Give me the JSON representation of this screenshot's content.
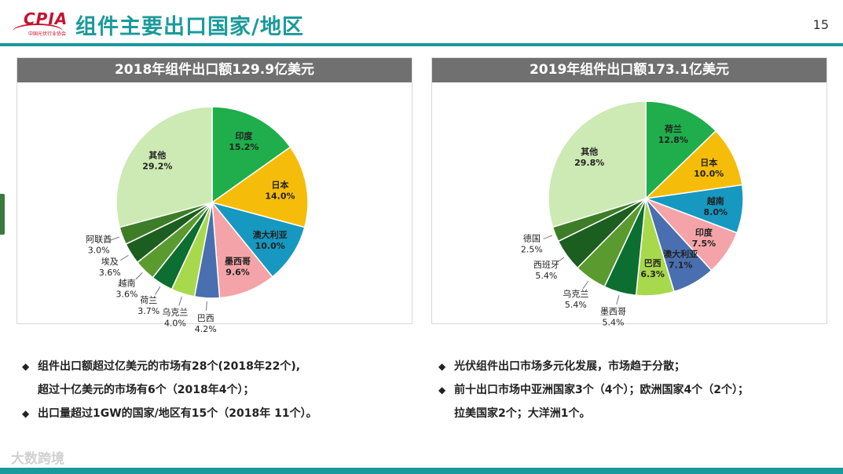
{
  "header": {
    "logo_text": "CPIA",
    "logo_sub": "中国光伏行业协会",
    "title": "组件主要出口国家/地区",
    "page_number": "15"
  },
  "chart_data": [
    {
      "type": "pie",
      "title": "2018年组件出口额129.9亿美元",
      "start_angle": 0,
      "slices": [
        {
          "name": "印度",
          "value": 15.2,
          "label": "15.2%",
          "color": "#1fae4b"
        },
        {
          "name": "日本",
          "value": 14.0,
          "label": "14.0%",
          "color": "#f5bd0a"
        },
        {
          "name": "澳大利亚",
          "value": 10.0,
          "label": "10.0%",
          "color": "#1798c0"
        },
        {
          "name": "墨西哥",
          "value": 9.6,
          "label": "9.6%",
          "color": "#f4a4a8"
        },
        {
          "name": "巴西",
          "value": 4.2,
          "label": "4.2%",
          "color": "#4a6fb0"
        },
        {
          "name": "乌克兰",
          "value": 4.0,
          "label": "4.0%",
          "color": "#a8d84c"
        },
        {
          "name": "荷兰",
          "value": 3.7,
          "label": "3.7%",
          "color": "#0d6e32"
        },
        {
          "name": "越南",
          "value": 3.6,
          "label": "3.6%",
          "color": "#5b9a2e"
        },
        {
          "name": "埃及",
          "value": 3.6,
          "label": "3.6%",
          "color": "#1b5e20"
        },
        {
          "name": "阿联酋",
          "value": 3.0,
          "label": "3.0%",
          "color": "#3e7d27"
        },
        {
          "name": "其他",
          "value": 29.2,
          "label": "29.2%",
          "color": "#cde9b4"
        }
      ]
    },
    {
      "type": "pie",
      "title": "2019年组件出口额173.1亿美元",
      "start_angle": 0,
      "slices": [
        {
          "name": "荷兰",
          "value": 12.8,
          "label": "12.8%",
          "color": "#1fae4b"
        },
        {
          "name": "日本",
          "value": 10.0,
          "label": "10.0%",
          "color": "#f5bd0a"
        },
        {
          "name": "越南",
          "value": 8.0,
          "label": "8.0%",
          "color": "#1798c0"
        },
        {
          "name": "印度",
          "value": 7.5,
          "label": "7.5%",
          "color": "#f4a4a8"
        },
        {
          "name": "澳大利亚",
          "value": 7.1,
          "label": "7.1%",
          "color": "#4a6fb0"
        },
        {
          "name": "巴西",
          "value": 6.3,
          "label": "6.3%",
          "color": "#a8d84c"
        },
        {
          "name": "墨西哥",
          "value": 5.4,
          "label": "5.4%",
          "color": "#0d6e32"
        },
        {
          "name": "乌克兰",
          "value": 5.4,
          "label": "5.4%",
          "color": "#5b9a2e"
        },
        {
          "name": "西班牙",
          "value": 5.4,
          "label": "5.4%",
          "color": "#1b5e20"
        },
        {
          "name": "德国",
          "value": 2.5,
          "label": "2.5%",
          "color": "#3e7d27"
        },
        {
          "name": "其他",
          "value": 29.8,
          "label": "29.8%",
          "color": "#cde9b4"
        }
      ]
    }
  ],
  "bullets": {
    "left": [
      {
        "text": "组件出口额超过亿美元的市场有28个(2018年22个),",
        "marker": "◆"
      },
      {
        "text": "超过十亿美元的市场有6个（2018年4个）；",
        "marker": ""
      },
      {
        "text": "出口量超过1GW的国家/地区有15个（2018年 11个）。",
        "marker": "◆"
      }
    ],
    "right": [
      {
        "text": "光伏组件出口市场多元化发展，市场趋于分散；",
        "marker": "◆"
      },
      {
        "text": " 前十出口市场中亚洲国家3个（4个）；欧洲国家4个（2个）；",
        "marker": "◆"
      },
      {
        "text": "拉美国家2个；大洋洲1个。",
        "marker": ""
      }
    ]
  },
  "watermark": "大数跨境"
}
